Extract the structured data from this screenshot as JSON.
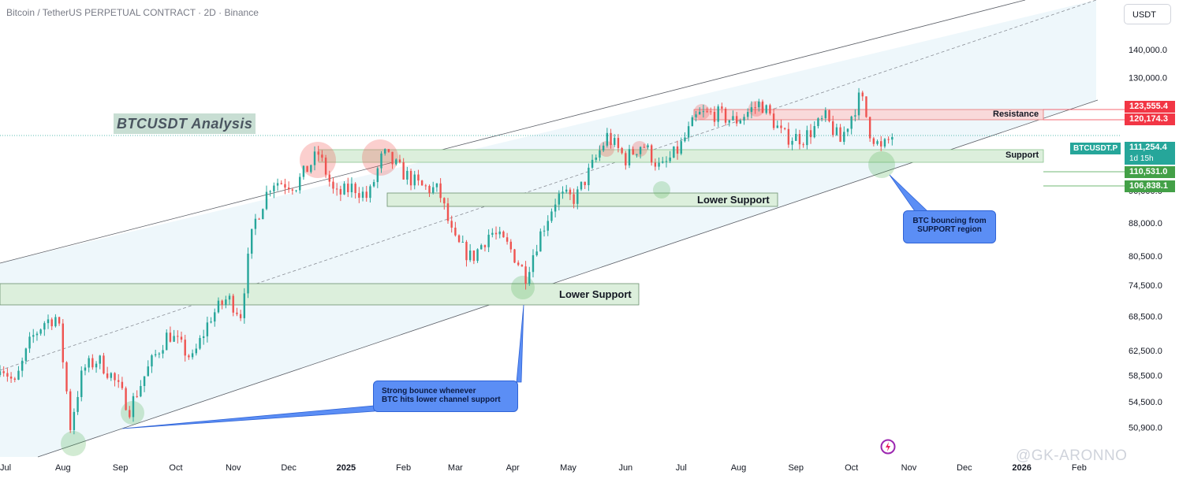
{
  "header": {
    "symbol_title": "Bitcoin / TetherUS PERPETUAL CONTRACT · 2D · Binance",
    "currency_button": "USDT"
  },
  "annotations": {
    "analysis_title": "BTCUSDT Analysis",
    "resistance_label": "Resistance",
    "support_label": "Support",
    "lower_support_1": "Lower Support",
    "lower_support_2": "Lower Support",
    "callout_support": [
      "BTC bouncing from",
      "SUPPORT region"
    ],
    "callout_lower": [
      "Strong bounce whenever",
      "BTC hits lower channel support"
    ]
  },
  "price_tags": {
    "resistance_high": "123,555.4",
    "resistance_low": "120,174.3",
    "last_price": "111,254.4",
    "symbol": "BTCUSDT.P",
    "countdown": "1d 15h",
    "support_high": "110,531.0",
    "support_low": "106,838.1"
  },
  "watermark": "@GK-ARONNO",
  "colors": {
    "up": "#26a69a",
    "down": "#ef5350",
    "channel_fill": "#eef7fb",
    "zone_green": "#dcefdc",
    "zone_red": "#f9d9da",
    "resistance_tag": "#f23645",
    "support_tag": "#43a047",
    "callout": "#5b8ef5"
  },
  "chart_data": {
    "type": "candlestick",
    "title": "Bitcoin / TetherUS PERPETUAL CONTRACT · 2D · Binance",
    "y_axis": {
      "scale": "log",
      "ticks": [
        "140,000.0",
        "130,000.0",
        "120,000.0",
        "96,000.0",
        "88,000.0",
        "80,500.0",
        "74,500.0",
        "68,500.0",
        "62,500.0",
        "58,500.0",
        "54,500.0",
        "50,900.0"
      ],
      "tick_values": [
        140000,
        130000,
        120000,
        96000,
        88000,
        80500,
        74500,
        68500,
        62500,
        58500,
        54500,
        50900
      ],
      "range": [
        47000,
        160000
      ]
    },
    "x_axis": {
      "ticks": [
        "Jul",
        "Aug",
        "Sep",
        "Oct",
        "Nov",
        "Dec",
        "2025",
        "Feb",
        "Mar",
        "Apr",
        "May",
        "Jun",
        "Jul",
        "Aug",
        "Sep",
        "Oct",
        "Nov",
        "Dec",
        "2026",
        "Feb"
      ],
      "tick_dates": [
        "2024-07-01",
        "2024-08-01",
        "2024-09-01",
        "2024-10-01",
        "2024-11-01",
        "2024-12-01",
        "2025-01-01",
        "2025-02-01",
        "2025-03-01",
        "2025-04-01",
        "2025-05-01",
        "2025-06-01",
        "2025-07-01",
        "2025-08-01",
        "2025-09-01",
        "2025-10-01",
        "2025-11-01",
        "2025-12-01",
        "2026-01-01",
        "2026-02-01"
      ],
      "range": [
        "2024-06-28",
        "2026-02-23"
      ]
    },
    "price_path": [
      [
        "2024-06-28",
        60500
      ],
      [
        "2024-07-06",
        57000
      ],
      [
        "2024-07-15",
        64500
      ],
      [
        "2024-07-22",
        67500
      ],
      [
        "2024-07-29",
        68500
      ],
      [
        "2024-08-05",
        51000
      ],
      [
        "2024-08-12",
        59500
      ],
      [
        "2024-08-20",
        61000
      ],
      [
        "2024-08-27",
        58500
      ],
      [
        "2024-09-06",
        53500
      ],
      [
        "2024-09-15",
        59000
      ],
      [
        "2024-09-27",
        65500
      ],
      [
        "2024-10-10",
        61000
      ],
      [
        "2024-10-20",
        68500
      ],
      [
        "2024-10-29",
        72000
      ],
      [
        "2024-11-05",
        69000
      ],
      [
        "2024-11-12",
        87500
      ],
      [
        "2024-11-22",
        98500
      ],
      [
        "2024-12-05",
        97500
      ],
      [
        "2024-12-17",
        106000
      ],
      [
        "2024-12-26",
        94500
      ],
      [
        "2025-01-05",
        97000
      ],
      [
        "2025-01-13",
        94000
      ],
      [
        "2025-01-21",
        106000
      ],
      [
        "2025-01-31",
        101000
      ],
      [
        "2025-02-10",
        97000
      ],
      [
        "2025-02-20",
        96000
      ],
      [
        "2025-02-28",
        84000
      ],
      [
        "2025-03-10",
        80000
      ],
      [
        "2025-03-20",
        86000
      ],
      [
        "2025-03-30",
        82500
      ],
      [
        "2025-04-08",
        76500
      ],
      [
        "2025-04-15",
        84500
      ],
      [
        "2025-04-25",
        94500
      ],
      [
        "2025-05-05",
        94000
      ],
      [
        "2025-05-15",
        103500
      ],
      [
        "2025-05-22",
        111000
      ],
      [
        "2025-06-01",
        104500
      ],
      [
        "2025-06-10",
        109000
      ],
      [
        "2025-06-20",
        101500
      ],
      [
        "2025-06-30",
        107500
      ],
      [
        "2025-07-10",
        117500
      ],
      [
        "2025-07-20",
        118000
      ],
      [
        "2025-07-30",
        115500
      ],
      [
        "2025-08-13",
        121500
      ],
      [
        "2025-08-25",
        111000
      ],
      [
        "2025-09-05",
        110500
      ],
      [
        "2025-09-17",
        116500
      ],
      [
        "2025-09-25",
        109500
      ],
      [
        "2025-10-06",
        124000
      ],
      [
        "2025-10-11",
        112500
      ],
      [
        "2025-10-17",
        107000
      ],
      [
        "2025-10-23",
        111254
      ]
    ]
  }
}
